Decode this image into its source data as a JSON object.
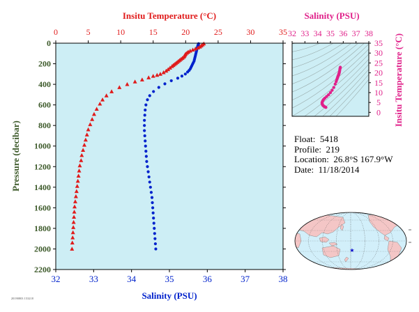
{
  "colors": {
    "temperature": "#e01b1b",
    "salinity": "#0022cc",
    "ts": "#e0218a",
    "plot_bg": "#cdeef5",
    "axis_text": "#3d5a2a",
    "map_land": "#f4c6c6",
    "map_ocean": "#d2effa",
    "marker": "#0000cc"
  },
  "float_info": {
    "float_label": "Float:",
    "float_value": "5418",
    "profile_label": "Profile:",
    "profile_value": "219",
    "location_label": "Location:",
    "location_value": "26.8°S  167.9°W",
    "date_label": "Date:",
    "date_value": "11/18/2014"
  },
  "footer_code": "20190803 153218",
  "chart_data": [
    {
      "type": "scatter",
      "title": "",
      "ylabel": "Pressure (decibar)",
      "ylim": [
        2200,
        0
      ],
      "yticks": [
        0,
        200,
        400,
        600,
        800,
        1000,
        1200,
        1400,
        1600,
        1800,
        2000,
        2200
      ],
      "top_axis": {
        "label": "Insitu Temperature (°C)",
        "lim": [
          0,
          35
        ],
        "ticks": [
          0,
          5,
          10,
          15,
          20,
          25,
          30,
          35
        ]
      },
      "bottom_axis": {
        "label": "Salinity (PSU)",
        "lim": [
          32,
          38
        ],
        "ticks": [
          32,
          33,
          34,
          35,
          36,
          37,
          38
        ]
      },
      "grid": false,
      "series": [
        {
          "name": "Insitu Temperature",
          "marker": "triangle",
          "axis": "top",
          "points": [
            [
              22.8,
              5
            ],
            [
              22.6,
              15
            ],
            [
              22.4,
              25
            ],
            [
              22.2,
              35
            ],
            [
              21.9,
              45
            ],
            [
              21.5,
              55
            ],
            [
              21.1,
              65
            ],
            [
              20.7,
              75
            ],
            [
              20.4,
              85
            ],
            [
              20.2,
              95
            ],
            [
              20.0,
              105
            ],
            [
              19.9,
              115
            ],
            [
              19.8,
              125
            ],
            [
              19.7,
              135
            ],
            [
              19.5,
              145
            ],
            [
              19.3,
              155
            ],
            [
              19.1,
              165
            ],
            [
              18.9,
              175
            ],
            [
              18.7,
              185
            ],
            [
              18.5,
              195
            ],
            [
              18.3,
              205
            ],
            [
              18.1,
              215
            ],
            [
              17.9,
              225
            ],
            [
              17.6,
              240
            ],
            [
              17.3,
              255
            ],
            [
              17.0,
              270
            ],
            [
              16.6,
              285
            ],
            [
              16.1,
              300
            ],
            [
              15.6,
              310
            ],
            [
              15.0,
              320
            ],
            [
              14.3,
              335
            ],
            [
              13.3,
              355
            ],
            [
              12.2,
              375
            ],
            [
              11.0,
              400
            ],
            [
              9.8,
              430
            ],
            [
              8.6,
              470
            ],
            [
              7.8,
              510
            ],
            [
              7.2,
              550
            ],
            [
              6.8,
              590
            ],
            [
              6.3,
              640
            ],
            [
              5.9,
              690
            ],
            [
              5.6,
              740
            ],
            [
              5.3,
              790
            ],
            [
              5.0,
              840
            ],
            [
              4.8,
              890
            ],
            [
              4.6,
              940
            ],
            [
              4.4,
              990
            ],
            [
              4.2,
              1040
            ],
            [
              4.0,
              1090
            ],
            [
              3.9,
              1140
            ],
            [
              3.7,
              1190
            ],
            [
              3.6,
              1240
            ],
            [
              3.5,
              1290
            ],
            [
              3.4,
              1340
            ],
            [
              3.3,
              1390
            ],
            [
              3.2,
              1440
            ],
            [
              3.1,
              1490
            ],
            [
              3.0,
              1540
            ],
            [
              2.9,
              1590
            ],
            [
              2.85,
              1640
            ],
            [
              2.8,
              1690
            ],
            [
              2.75,
              1740
            ],
            [
              2.7,
              1790
            ],
            [
              2.65,
              1840
            ],
            [
              2.6,
              1890
            ],
            [
              2.55,
              1940
            ],
            [
              2.5,
              2000
            ]
          ]
        },
        {
          "name": "Salinity",
          "marker": "circle",
          "axis": "bottom",
          "points": [
            [
              35.77,
              5
            ],
            [
              35.76,
              15
            ],
            [
              35.75,
              25
            ],
            [
              35.74,
              40
            ],
            [
              35.73,
              55
            ],
            [
              35.72,
              70
            ],
            [
              35.71,
              85
            ],
            [
              35.7,
              100
            ],
            [
              35.69,
              115
            ],
            [
              35.68,
              130
            ],
            [
              35.67,
              145
            ],
            [
              35.66,
              160
            ],
            [
              35.65,
              175
            ],
            [
              35.63,
              190
            ],
            [
              35.61,
              205
            ],
            [
              35.59,
              220
            ],
            [
              35.57,
              235
            ],
            [
              35.55,
              250
            ],
            [
              35.52,
              265
            ],
            [
              35.48,
              280
            ],
            [
              35.42,
              300
            ],
            [
              35.33,
              320
            ],
            [
              35.22,
              340
            ],
            [
              35.05,
              365
            ],
            [
              34.88,
              395
            ],
            [
              34.72,
              430
            ],
            [
              34.58,
              470
            ],
            [
              34.48,
              510
            ],
            [
              34.42,
              550
            ],
            [
              34.38,
              600
            ],
            [
              34.36,
              650
            ],
            [
              34.35,
              700
            ],
            [
              34.34,
              750
            ],
            [
              34.34,
              800
            ],
            [
              34.34,
              850
            ],
            [
              34.35,
              900
            ],
            [
              34.36,
              950
            ],
            [
              34.37,
              1000
            ],
            [
              34.38,
              1050
            ],
            [
              34.39,
              1100
            ],
            [
              34.4,
              1150
            ],
            [
              34.42,
              1200
            ],
            [
              34.44,
              1250
            ],
            [
              34.46,
              1300
            ],
            [
              34.48,
              1350
            ],
            [
              34.5,
              1400
            ],
            [
              34.52,
              1450
            ],
            [
              34.54,
              1500
            ],
            [
              34.55,
              1550
            ],
            [
              34.56,
              1600
            ],
            [
              34.57,
              1650
            ],
            [
              34.58,
              1700
            ],
            [
              34.59,
              1750
            ],
            [
              34.6,
              1800
            ],
            [
              34.61,
              1850
            ],
            [
              34.62,
              1900
            ],
            [
              34.63,
              1950
            ],
            [
              34.64,
              2000
            ]
          ]
        }
      ]
    },
    {
      "type": "scatter",
      "title": "",
      "top_axis": {
        "label": "Salinity (PSU)",
        "lim": [
          32,
          38
        ],
        "ticks": [
          32,
          33,
          34,
          35,
          36,
          37,
          38
        ]
      },
      "ylabel": "Insitu Temperature (°C)",
      "ylim": [
        -2,
        35
      ],
      "yticks": [
        0,
        5,
        10,
        15,
        20,
        25,
        30,
        35
      ],
      "y_axis_side": "right",
      "background": "density contours",
      "series": [
        {
          "name": "T-S",
          "marker": "circle",
          "points": [
            [
              35.77,
              22.8
            ],
            [
              35.76,
              22.4
            ],
            [
              35.74,
              21.9
            ],
            [
              35.72,
              21.1
            ],
            [
              35.7,
              20.4
            ],
            [
              35.68,
              19.9
            ],
            [
              35.66,
              19.5
            ],
            [
              35.64,
              19.1
            ],
            [
              35.62,
              18.7
            ],
            [
              35.59,
              18.3
            ],
            [
              35.57,
              17.9
            ],
            [
              35.54,
              17.3
            ],
            [
              35.5,
              16.6
            ],
            [
              35.45,
              15.6
            ],
            [
              35.37,
              14.3
            ],
            [
              35.26,
              12.6
            ],
            [
              35.13,
              11.2
            ],
            [
              35.0,
              10.0
            ],
            [
              34.85,
              8.9
            ],
            [
              34.7,
              8.0
            ],
            [
              34.56,
              7.2
            ],
            [
              34.46,
              6.5
            ],
            [
              34.4,
              5.9
            ],
            [
              34.36,
              5.3
            ],
            [
              34.34,
              4.8
            ],
            [
              34.35,
              4.4
            ],
            [
              34.37,
              4.0
            ],
            [
              34.4,
              3.6
            ],
            [
              34.45,
              3.3
            ],
            [
              34.5,
              3.0
            ],
            [
              34.56,
              2.8
            ],
            [
              34.61,
              2.6
            ],
            [
              34.64,
              2.5
            ]
          ]
        }
      ]
    }
  ]
}
